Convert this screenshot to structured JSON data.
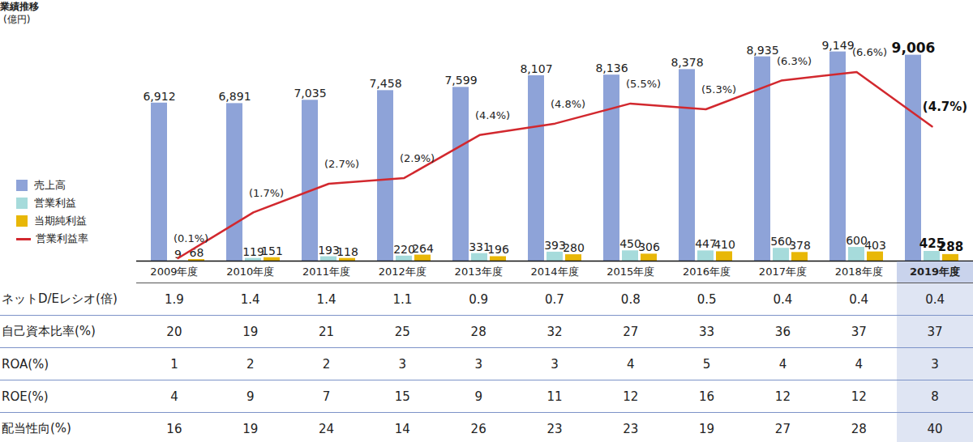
{
  "chart_data": {
    "type": "bar",
    "title": "業績推移",
    "subtitle": "(億円)",
    "categories": [
      "2009年度",
      "2010年度",
      "2011年度",
      "2012年度",
      "2013年度",
      "2014年度",
      "2015年度",
      "2016年度",
      "2017年度",
      "2018年度",
      "2019年度"
    ],
    "series": [
      {
        "name": "売上高",
        "type": "bar",
        "color": "#8ea3d8",
        "values": [
          6912,
          6891,
          7035,
          7458,
          7599,
          8107,
          8136,
          8378,
          8935,
          9149,
          9006
        ],
        "value_labels": [
          "6,912",
          "6,891",
          "7,035",
          "7,458",
          "7,599",
          "8,107",
          "8,136",
          "8,378",
          "8,935",
          "9,149",
          "9,006"
        ]
      },
      {
        "name": "営業利益",
        "type": "bar",
        "color": "#a6dbdb",
        "values": [
          9,
          119,
          193,
          220,
          331,
          393,
          450,
          447,
          560,
          600,
          425
        ]
      },
      {
        "name": "当期純利益",
        "type": "bar",
        "color": "#e8b707",
        "values": [
          68,
          151,
          118,
          264,
          196,
          280,
          306,
          410,
          378,
          403,
          288
        ]
      },
      {
        "name": "営業利益率",
        "type": "line",
        "axis": "y2",
        "color": "#d2282e",
        "values": [
          0.1,
          1.7,
          2.7,
          2.9,
          4.4,
          4.8,
          5.5,
          5.3,
          6.3,
          6.6,
          4.7
        ],
        "value_labels": [
          "(0.1%)",
          "(1.7%)",
          "(2.7%)",
          "(2.9%)",
          "(4.4%)",
          "(4.8%)",
          "(5.5%)",
          "(5.3%)",
          "(6.3%)",
          "(6.6%)",
          "(4.7%)"
        ]
      }
    ],
    "ylim": [
      0,
      11400
    ],
    "yticks": [],
    "y2lim": [
      0,
      9.1
    ],
    "y2ticks": [],
    "tick_labels": false,
    "data_labels": true,
    "legend": "left"
  },
  "table": {
    "rows": [
      {
        "label": "ネットD/Eレシオ(倍)",
        "values": [
          1.9,
          1.4,
          1.4,
          1.1,
          0.9,
          0.7,
          0.8,
          0.5,
          0.4,
          0.4,
          0.4
        ]
      },
      {
        "label": "自己資本比率(%)",
        "values": [
          20,
          19,
          21,
          25,
          28,
          32,
          27,
          33,
          36,
          37,
          37
        ]
      },
      {
        "label": "ROA(%)",
        "values": [
          1,
          2,
          2,
          3,
          3,
          3,
          4,
          5,
          4,
          4,
          3
        ]
      },
      {
        "label": "ROE(%)",
        "values": [
          4,
          9,
          7,
          15,
          9,
          11,
          12,
          16,
          12,
          12,
          8
        ]
      },
      {
        "label": "配当性向(%)",
        "values": [
          16,
          19,
          24,
          14,
          26,
          23,
          23,
          19,
          27,
          28,
          40
        ]
      }
    ]
  }
}
